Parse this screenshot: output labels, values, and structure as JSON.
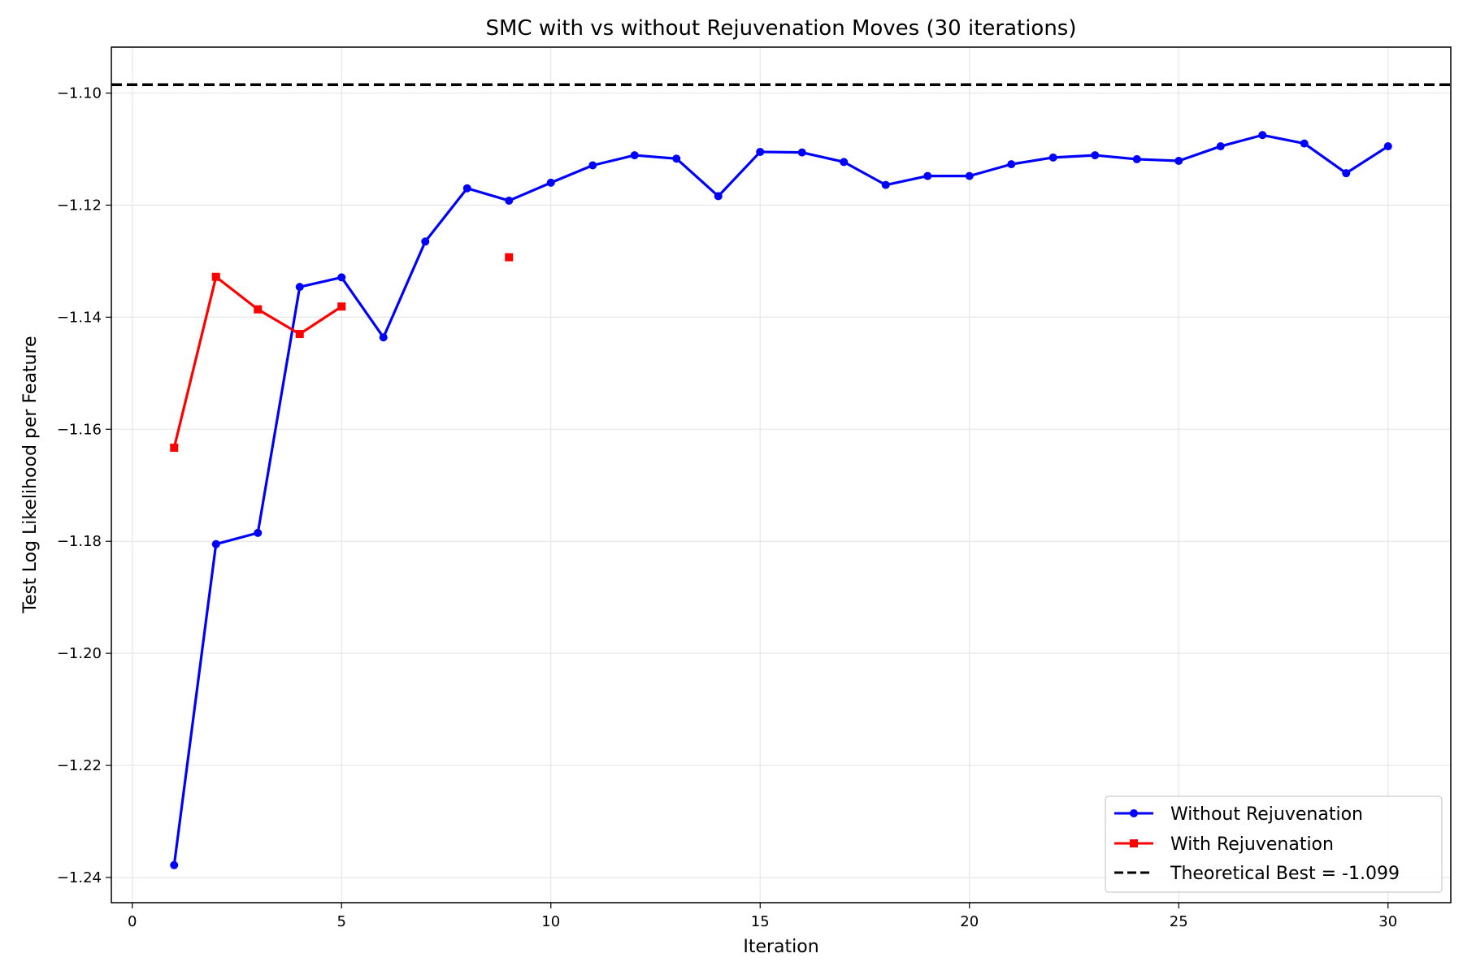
{
  "chart_data": {
    "type": "line",
    "title": "SMC with vs without Rejuvenation Moves (30 iterations)",
    "xlabel": "Iteration",
    "ylabel": "Test Log Likelihood per Feature",
    "xlim": [
      -0.5,
      31.5
    ],
    "ylim": [
      -1.2445,
      -1.0918
    ],
    "xticks": [
      0,
      5,
      10,
      15,
      20,
      25,
      30
    ],
    "xtick_labels": [
      "0",
      "5",
      "10",
      "15",
      "20",
      "25",
      "30"
    ],
    "yticks": [
      -1.24,
      -1.22,
      -1.2,
      -1.18,
      -1.16,
      -1.14,
      -1.12,
      -1.1
    ],
    "ytick_labels": [
      "−1.24",
      "−1.22",
      "−1.20",
      "−1.18",
      "−1.16",
      "−1.14",
      "−1.12",
      "−1.10"
    ],
    "grid": true,
    "legend_position": "lower-right",
    "series": [
      {
        "name": "Without Rejuvenation",
        "color": "#0000ff",
        "marker": "circle",
        "x": [
          1,
          2,
          3,
          4,
          5,
          6,
          7,
          8,
          9,
          10,
          11,
          12,
          13,
          14,
          15,
          16,
          17,
          18,
          19,
          20,
          21,
          22,
          23,
          24,
          25,
          26,
          27,
          28,
          29,
          30
        ],
        "y": [
          -1.2378,
          -1.1805,
          -1.1785,
          -1.1346,
          -1.1329,
          -1.1436,
          -1.1265,
          -1.117,
          -1.1192,
          -1.116,
          -1.1129,
          -1.1111,
          -1.1117,
          -1.1184,
          -1.1105,
          -1.1106,
          -1.1123,
          -1.1164,
          -1.1148,
          -1.1148,
          -1.1127,
          -1.1115,
          -1.1111,
          -1.1118,
          -1.1121,
          -1.1095,
          -1.1075,
          -1.109,
          -1.1143,
          -1.1095
        ]
      },
      {
        "name": "With Rejuvenation",
        "color": "#ff0000",
        "marker": "square",
        "x": [
          1,
          2,
          3,
          4,
          5,
          9
        ],
        "y": [
          -1.1633,
          -1.1328,
          -1.1386,
          -1.143,
          -1.1381,
          -1.1293
        ]
      }
    ],
    "reference_line": {
      "name": "Theoretical Best = -1.099",
      "y": -1.0985,
      "color": "#000000",
      "style": "dashed"
    }
  }
}
